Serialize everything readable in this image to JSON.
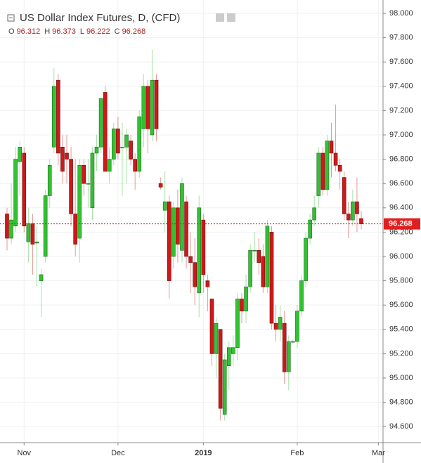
{
  "chart_data": {
    "type": "candlestick",
    "title": "US Dollar Index Futures, D, (CFD)",
    "legend_ohlc": [
      {
        "label": "O",
        "value": 96.312
      },
      {
        "label": "H",
        "value": 96.373
      },
      {
        "label": "L",
        "value": 96.222
      },
      {
        "label": "C",
        "value": 96.268
      }
    ],
    "last_price": 96.268,
    "up_color": "#33c133",
    "down_color": "#d01818",
    "categories": [
      null,
      null,
      null,
      null,
      "Nov",
      null,
      null,
      null,
      null,
      null,
      null,
      null,
      null,
      null,
      null,
      null,
      null,
      null,
      null,
      null,
      null,
      null,
      null,
      null,
      null,
      null,
      "Dec",
      null,
      null,
      null,
      null,
      null,
      null,
      null,
      null,
      null,
      null,
      null,
      null,
      null,
      null,
      null,
      null,
      null,
      null,
      null,
      "2019",
      null,
      null,
      null,
      null,
      null,
      null,
      null,
      null,
      null,
      null,
      null,
      null,
      null,
      null,
      null,
      null,
      null,
      null,
      null,
      null,
      null,
      "Feb",
      null,
      null,
      null,
      null,
      null,
      null,
      null,
      null,
      null,
      null,
      null,
      null,
      null,
      null,
      null,
      null,
      null,
      null,
      "Mar"
    ],
    "open": [
      96.35,
      96.15,
      96.25,
      96.78,
      96.85,
      96.12,
      96.27,
      96.11,
      95.8,
      96.0,
      96.5,
      96.9,
      97.45,
      96.9,
      96.85,
      96.8,
      96.35,
      96.15,
      96.75,
      96.6,
      96.4,
      96.85,
      96.9,
      97.35,
      96.7,
      96.8,
      97.05,
      96.9,
      96.9,
      96.95,
      96.8,
      96.7,
      97.05,
      97.4,
      97.0,
      97.45,
      96.6,
      96.38,
      96.45,
      96.0,
      96.4,
      96.05,
      96.45,
      96.0,
      95.95,
      95.7,
      96.3,
      95.8,
      95.65,
      95.2,
      95.4,
      94.7,
      95.1,
      95.2,
      95.25,
      95.65,
      95.55,
      95.75,
      96.05,
      96.05,
      96.0,
      95.75,
      96.2,
      95.45,
      95.4,
      95.45,
      95.05,
      95.3,
      95.3,
      95.55,
      95.8,
      96.15,
      96.3,
      96.5,
      96.85,
      96.55,
      96.95,
      96.85,
      96.75,
      96.65,
      96.35,
      96.3,
      96.45,
      96.312,
      null,
      null,
      null,
      null
    ],
    "high": [
      96.4,
      96.6,
      96.9,
      96.95,
      96.9,
      96.4,
      96.35,
      96.25,
      95.9,
      96.55,
      96.8,
      97.55,
      97.5,
      97.0,
      97.0,
      96.9,
      96.8,
      96.8,
      96.8,
      96.8,
      96.9,
      97.0,
      97.3,
      97.4,
      96.9,
      97.1,
      97.15,
      97.1,
      97.05,
      97.0,
      96.85,
      97.2,
      97.5,
      97.45,
      97.7,
      97.5,
      96.65,
      96.7,
      96.5,
      96.45,
      96.55,
      96.65,
      96.5,
      96.2,
      96.15,
      96.5,
      96.35,
      95.85,
      95.65,
      95.5,
      95.4,
      95.2,
      95.3,
      95.35,
      95.7,
      95.7,
      95.85,
      96.1,
      96.2,
      96.15,
      96.1,
      96.3,
      96.25,
      95.6,
      95.6,
      95.55,
      95.35,
      95.32,
      95.6,
      95.85,
      96.2,
      96.35,
      96.5,
      96.9,
      96.9,
      97.0,
      97.1,
      97.25,
      96.8,
      96.7,
      96.45,
      96.55,
      96.65,
      96.373,
      null,
      null,
      null,
      null
    ],
    "low": [
      96.05,
      96.1,
      96.2,
      96.5,
      96.2,
      95.95,
      95.85,
      95.75,
      95.5,
      95.95,
      96.4,
      96.85,
      96.75,
      96.6,
      96.6,
      96.25,
      96.0,
      95.95,
      96.5,
      96.4,
      96.3,
      96.7,
      96.85,
      96.7,
      96.6,
      96.75,
      96.8,
      96.5,
      96.6,
      96.75,
      96.55,
      96.65,
      96.9,
      96.85,
      96.95,
      96.95,
      96.55,
      96.2,
      95.65,
      95.9,
      95.95,
      95.95,
      95.9,
      95.7,
      95.6,
      95.5,
      95.7,
      95.55,
      95.1,
      95.0,
      94.65,
      94.65,
      94.9,
      95.1,
      95.15,
      95.45,
      95.45,
      95.7,
      95.95,
      95.85,
      95.7,
      95.7,
      95.4,
      95.3,
      95.3,
      94.95,
      94.9,
      95.28,
      95.25,
      95.5,
      95.75,
      96.1,
      96.25,
      96.4,
      96.5,
      96.5,
      96.65,
      96.7,
      96.55,
      96.3,
      96.15,
      96.25,
      96.2,
      96.222,
      null,
      null,
      null,
      null
    ],
    "close": [
      96.15,
      96.3,
      96.8,
      96.9,
      96.25,
      96.27,
      96.1,
      96.12,
      95.85,
      96.5,
      96.75,
      97.4,
      96.85,
      96.7,
      96.8,
      96.35,
      96.1,
      96.75,
      96.6,
      96.6,
      96.85,
      96.9,
      97.3,
      96.7,
      96.8,
      97.05,
      96.85,
      96.9,
      97.0,
      96.8,
      96.7,
      97.15,
      97.4,
      97.05,
      97.45,
      97.05,
      96.57,
      96.45,
      95.8,
      96.4,
      96.1,
      96.6,
      96.0,
      95.95,
      95.75,
      96.4,
      95.85,
      95.75,
      95.2,
      95.45,
      94.75,
      95.15,
      95.25,
      95.25,
      95.65,
      95.55,
      95.75,
      96.05,
      96.05,
      95.95,
      95.75,
      96.25,
      95.45,
      95.4,
      95.5,
      95.05,
      95.3,
      95.3,
      95.55,
      95.8,
      96.15,
      96.3,
      96.4,
      96.85,
      96.55,
      96.95,
      96.85,
      96.75,
      96.7,
      96.35,
      96.3,
      96.45,
      96.35,
      96.268,
      null,
      null,
      null,
      null
    ],
    "ylim": [
      94.468,
      98.11
    ],
    "yticks": [
      {
        "value": 94.6,
        "label": "94.600"
      },
      {
        "value": 94.8,
        "label": "94.800"
      },
      {
        "value": 95.0,
        "label": "95.000"
      },
      {
        "value": 95.2,
        "label": "95.200"
      },
      {
        "value": 95.4,
        "label": "95.400"
      },
      {
        "value": 95.6,
        "label": "95.600"
      },
      {
        "value": 95.8,
        "label": "95.800"
      },
      {
        "value": 96.0,
        "label": "96.000"
      },
      {
        "value": 96.2,
        "label": "96.200"
      },
      {
        "value": 96.4,
        "label": "96.400"
      },
      {
        "value": 96.6,
        "label": "96.600"
      },
      {
        "value": 96.8,
        "label": "96.800"
      },
      {
        "value": 97.0,
        "label": "97.000"
      },
      {
        "value": 97.2,
        "label": "97.200"
      },
      {
        "value": 97.4,
        "label": "97.400"
      },
      {
        "value": 97.6,
        "label": "97.600"
      },
      {
        "value": 97.8,
        "label": "97.800"
      },
      {
        "value": 98.0,
        "label": "98.000"
      }
    ],
    "grid": true
  }
}
